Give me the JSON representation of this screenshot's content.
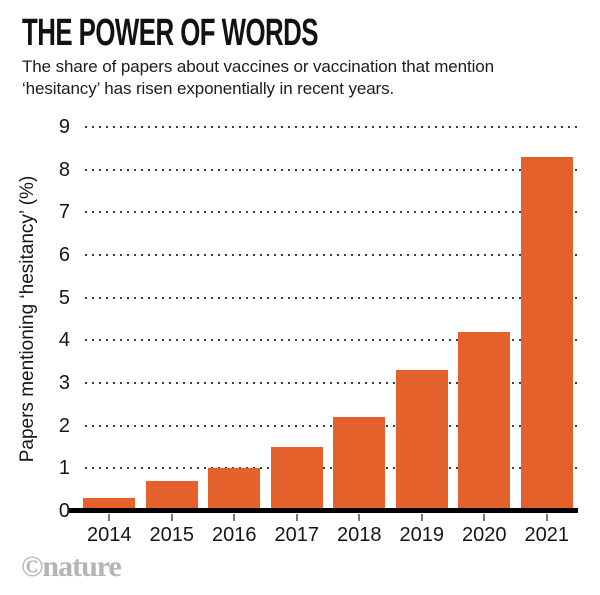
{
  "header": {
    "title": "THE POWER OF WORDS",
    "subtitle_lines": [
      "The share of papers about vaccines or vaccination that mention",
      "‘hesitancy’ has risen exponentially in recent years."
    ]
  },
  "chart_data": {
    "type": "bar",
    "title": "THE POWER OF WORDS",
    "categories": [
      "2014",
      "2015",
      "2016",
      "2017",
      "2018",
      "2019",
      "2020",
      "2021"
    ],
    "values": [
      0.3,
      0.7,
      1.0,
      1.5,
      2.2,
      3.3,
      4.2,
      8.3
    ],
    "xlabel": "",
    "ylabel": "Papers mentioning ‘hesitancy’ (%)",
    "ylim": [
      0,
      9
    ],
    "yticks": [
      0,
      1,
      2,
      3,
      4,
      5,
      6,
      7,
      8,
      9
    ],
    "grid": "horizontal-dotted",
    "legend": "none",
    "bar_color": "#E4612B",
    "axis_color": "#000000",
    "gridline_color": "#3C3C3C"
  },
  "footer": {
    "credit": "©nature",
    "credit_color": "#B4B4B4"
  }
}
